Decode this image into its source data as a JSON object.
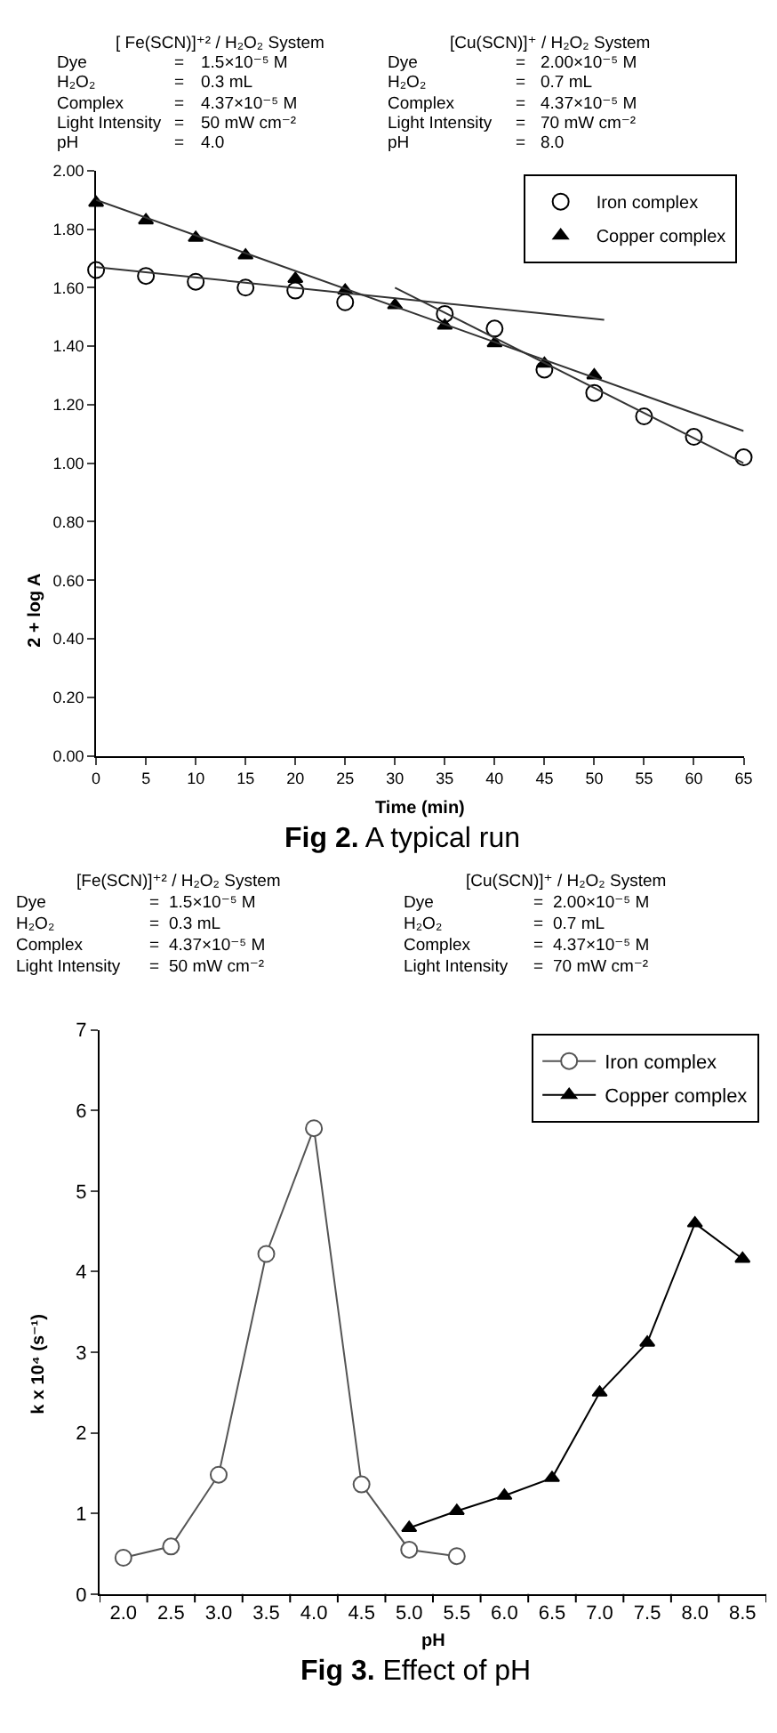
{
  "chart_data": [
    {
      "type": "scatter",
      "title": "Fig 2. A typical run",
      "xlabel": "Time (min)",
      "ylabel": "2 + log A",
      "annotations": [
        "[ Fe(SCN)]⁺² / H₂O₂ System",
        "Dye = 1.5×10⁻⁵ M",
        "H₂O₂ = 0.3 mL",
        "Complex = 4.37×10⁻⁵ M",
        "Light Intensity = 50 mW cm⁻²",
        "pH = 4.0",
        "[Cu(SCN)]⁺ / H₂O₂ System",
        "Dye = 2.00×10⁻⁵ M",
        "H₂O₂ = 0.7 mL",
        "Complex = 4.37×10⁻⁵ M",
        "Light Intensity = 70 mW cm⁻²",
        "pH = 8.0"
      ],
      "x": [
        0,
        5,
        10,
        15,
        20,
        25,
        30,
        35,
        40,
        45,
        50,
        55,
        60,
        65
      ],
      "series": [
        {
          "name": "Iron complex",
          "type": "scatter",
          "marker": "circle",
          "color": "#000000",
          "values": [
            1.66,
            1.64,
            1.62,
            1.6,
            1.59,
            1.55,
            null,
            1.51,
            1.46,
            1.32,
            1.24,
            1.16,
            1.09,
            1.02
          ]
        },
        {
          "name": "Copper complex",
          "type": "scatter",
          "marker": "triangle",
          "color": "#000000",
          "values": [
            1.89,
            1.83,
            1.77,
            1.71,
            1.63,
            1.59,
            1.54,
            1.47,
            1.41,
            1.34,
            1.3,
            null,
            null,
            null
          ]
        },
        {
          "type": "line",
          "marker": "none",
          "color": "#333333",
          "x": [
            0,
            51
          ],
          "values": [
            1.67,
            1.49
          ]
        },
        {
          "type": "line",
          "marker": "none",
          "color": "#333333",
          "x": [
            30,
            65
          ],
          "values": [
            1.6,
            1.0
          ]
        },
        {
          "type": "line",
          "marker": "none",
          "color": "#333333",
          "x": [
            0,
            65
          ],
          "values": [
            1.9,
            1.11
          ]
        }
      ],
      "xlim": [
        0,
        65
      ],
      "xticks": [
        0,
        5,
        10,
        15,
        20,
        25,
        30,
        35,
        40,
        45,
        50,
        55,
        60,
        65
      ],
      "ylim": [
        0,
        2
      ],
      "yticks": [
        {
          "value": 0,
          "label": "0.00"
        },
        {
          "value": 0.2,
          "label": "0.20"
        },
        {
          "value": 0.4,
          "label": "0.40"
        },
        {
          "value": 0.6,
          "label": "0.60"
        },
        {
          "value": 0.8,
          "label": "0.80"
        },
        {
          "value": 1,
          "label": "1.00"
        },
        {
          "value": 1.2,
          "label": "1.20"
        },
        {
          "value": 1.4,
          "label": "1.40"
        },
        {
          "value": 1.6,
          "label": "1.60"
        },
        {
          "value": 1.8,
          "label": "1.80"
        },
        {
          "value": 2,
          "label": "2.00"
        }
      ],
      "legend": "top right"
    },
    {
      "type": "line",
      "title": "Fig 3. Effect of pH",
      "xlabel": "pH",
      "ylabel": "k x 10⁴ (s⁻¹)",
      "annotations": [
        "[Fe(SCN)]⁺² / H₂O₂ System",
        "Dye = 1.5×10⁻⁵ M",
        "H₂O₂ = 0.3 mL",
        "Complex = 4.37×10⁻⁵ M",
        "Light Intensity = 50 mW cm⁻²",
        "[Cu(SCN)]⁺ / H₂O₂ System",
        "Dye = 2.00×10⁻⁵ M",
        "H₂O₂ = 0.7 mL",
        "Complex = 4.37×10⁻⁵ M",
        "Light Intensity = 70 mW cm⁻²"
      ],
      "categories": [
        "2.0",
        "2.5",
        "3.0",
        "3.5",
        "4.0",
        "4.5",
        "5.0",
        "5.5",
        "6.0",
        "6.5",
        "7.0",
        "7.5",
        "8.0",
        "8.5"
      ],
      "series": [
        {
          "name": "Iron complex",
          "marker": "circle",
          "color": "#555555",
          "values": [
            0.45,
            0.59,
            1.48,
            4.22,
            5.78,
            1.36,
            0.55,
            0.47,
            null,
            null,
            null,
            null,
            null,
            null
          ]
        },
        {
          "name": "Copper complex",
          "marker": "triangle",
          "color": "#000000",
          "values": [
            null,
            null,
            null,
            null,
            null,
            null,
            0.82,
            1.03,
            1.22,
            1.44,
            2.5,
            3.12,
            4.6,
            4.16
          ]
        }
      ],
      "ylim": [
        0,
        7
      ],
      "yticks": [
        0,
        1,
        2,
        3,
        4,
        5,
        6,
        7
      ],
      "legend": "top right"
    }
  ]
}
